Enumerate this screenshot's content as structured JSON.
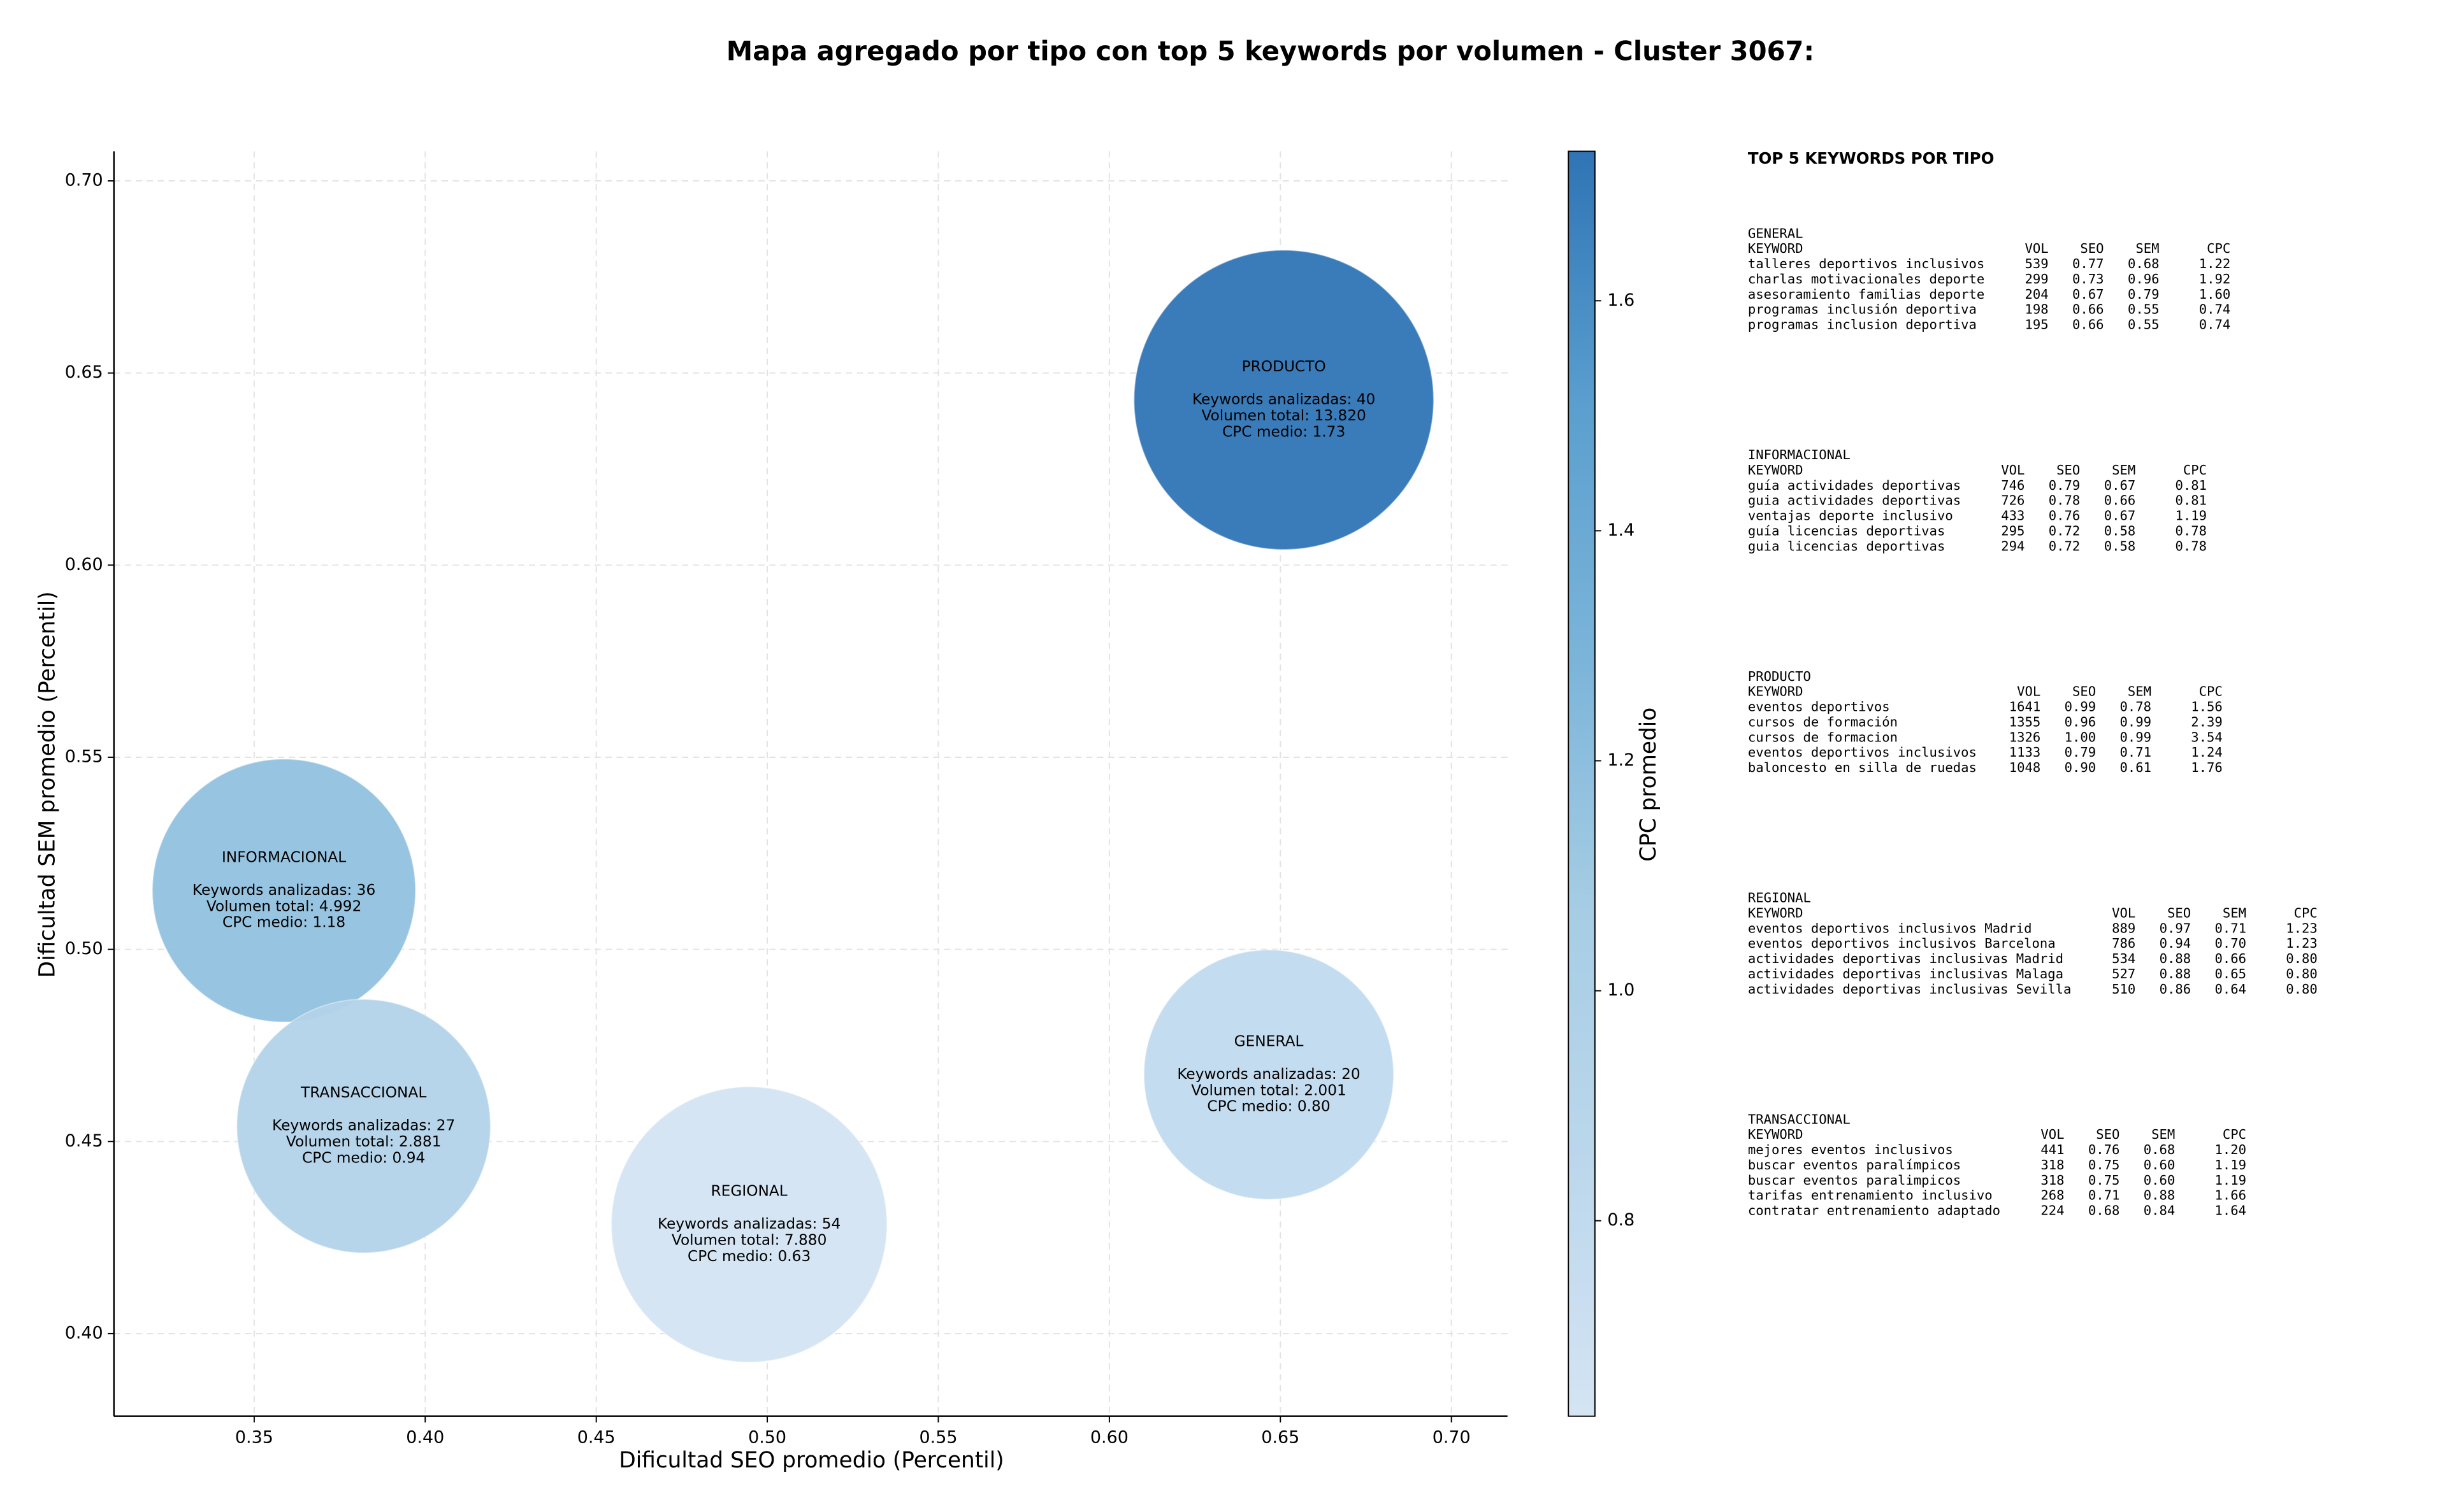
{
  "chart_data": {
    "type": "bubble",
    "title": "Mapa agregado por tipo con top 5 keywords por volumen - Cluster 3067:",
    "xlabel": "Dificultad SEO promedio (Percentil)",
    "ylabel": "Dificultad SEM promedio (Percentil)",
    "xlim": [
      0.309,
      0.7164
    ],
    "ylim": [
      0.3785,
      0.7077
    ],
    "xticks": [
      0.35,
      {
        "value": 0.4,
        "label": "0.40"
      },
      0.45,
      {
        "value": 0.5,
        "label": "0.50"
      },
      0.55,
      {
        "value": 0.6,
        "label": "0.60"
      },
      0.65,
      {
        "value": 0.7,
        "label": "0.70"
      }
    ],
    "yticks": [
      {
        "value": 0.4,
        "label": "0.40"
      },
      0.45,
      {
        "value": 0.5,
        "label": "0.50"
      },
      0.55,
      {
        "value": 0.6,
        "label": "0.60"
      },
      0.65,
      {
        "value": 0.7,
        "label": "0.70"
      }
    ],
    "grid": true,
    "colorbar": {
      "label": "CPC promedio",
      "clim": [
        0.63,
        1.73
      ],
      "ticks": [
        0.8,
        {
          "value": 1,
          "label": "1.0"
        },
        1.2,
        1.4,
        1.6
      ],
      "colors": [
        "#d4e4f3",
        "#bcd7ec",
        "#a6cde4",
        "#7bb4d9",
        "#5a9fce",
        "#2f74b5"
      ]
    },
    "series": [
      {
        "name": "GENERAL",
        "x": 0.6466,
        "y": 0.4674,
        "size": 2001,
        "color_value": 0.8,
        "label_lines": [
          "Keywords analizadas: 20",
          "Volumen total: 2.001",
          "CPC medio: 0.80"
        ]
      },
      {
        "name": "INFORMACIONAL",
        "x": 0.3587,
        "y": 0.5153,
        "size": 4992,
        "color_value": 1.18,
        "label_lines": [
          "Keywords analizadas: 36",
          "Volumen total: 4.992",
          "CPC medio: 1.18"
        ]
      },
      {
        "name": "PRODUCTO",
        "x": 0.651,
        "y": 0.643,
        "size": 13820,
        "color_value": 1.73,
        "label_lines": [
          "Keywords analizadas: 40",
          "Volumen total: 13.820",
          "CPC medio: 1.73"
        ]
      },
      {
        "name": "REGIONAL",
        "x": 0.4947,
        "y": 0.4284,
        "size": 7880,
        "color_value": 0.63,
        "label_lines": [
          "Keywords analizadas: 54",
          "Volumen total: 7.880",
          "CPC medio: 0.63"
        ]
      },
      {
        "name": "TRANSACCIONAL",
        "x": 0.382,
        "y": 0.454,
        "size": 2881,
        "color_value": 0.94,
        "label_lines": [
          "Keywords analizadas: 27",
          "Volumen total: 2.881",
          "CPC medio: 0.94"
        ]
      }
    ]
  },
  "panel": {
    "title": "TOP 5 KEYWORDS POR TIPO",
    "columns": [
      "KEYWORD",
      "VOL",
      "SEO",
      "SEM",
      "CPC"
    ],
    "groups": [
      {
        "name": "GENERAL",
        "rows": [
          [
            "talleres deportivos inclusivos",
            "539",
            "0.77",
            "0.68",
            "1.22"
          ],
          [
            "charlas motivacionales deporte",
            "299",
            "0.73",
            "0.96",
            "1.92"
          ],
          [
            "asesoramiento familias deporte",
            "204",
            "0.67",
            "0.79",
            "1.60"
          ],
          [
            "programas inclusión deportiva",
            "198",
            "0.66",
            "0.55",
            "0.74"
          ],
          [
            "programas inclusion deportiva",
            "195",
            "0.66",
            "0.55",
            "0.74"
          ]
        ]
      },
      {
        "name": "INFORMACIONAL",
        "rows": [
          [
            "guía actividades deportivas",
            "746",
            "0.79",
            "0.67",
            "0.81"
          ],
          [
            "guia actividades deportivas",
            "726",
            "0.78",
            "0.66",
            "0.81"
          ],
          [
            "ventajas deporte inclusivo",
            "433",
            "0.76",
            "0.67",
            "1.19"
          ],
          [
            "guía licencias deportivas",
            "295",
            "0.72",
            "0.58",
            "0.78"
          ],
          [
            "guia licencias deportivas",
            "294",
            "0.72",
            "0.58",
            "0.78"
          ]
        ]
      },
      {
        "name": "PRODUCTO",
        "rows": [
          [
            "eventos deportivos",
            "1641",
            "0.99",
            "0.78",
            "1.56"
          ],
          [
            "cursos de formación",
            "1355",
            "0.96",
            "0.99",
            "2.39"
          ],
          [
            "cursos de formacion",
            "1326",
            "1.00",
            "0.99",
            "3.54"
          ],
          [
            "eventos deportivos inclusivos",
            "1133",
            "0.79",
            "0.71",
            "1.24"
          ],
          [
            "baloncesto en silla de ruedas",
            "1048",
            "0.90",
            "0.61",
            "1.76"
          ]
        ]
      },
      {
        "name": "REGIONAL",
        "rows": [
          [
            "eventos deportivos inclusivos Madrid",
            "889",
            "0.97",
            "0.71",
            "1.23"
          ],
          [
            "eventos deportivos inclusivos Barcelona",
            "786",
            "0.94",
            "0.70",
            "1.23"
          ],
          [
            "actividades deportivas inclusivas Madrid",
            "534",
            "0.88",
            "0.66",
            "0.80"
          ],
          [
            "actividades deportivas inclusivas Malaga",
            "527",
            "0.88",
            "0.65",
            "0.80"
          ],
          [
            "actividades deportivas inclusivas Sevilla",
            "510",
            "0.86",
            "0.64",
            "0.80"
          ]
        ]
      },
      {
        "name": "TRANSACCIONAL",
        "rows": [
          [
            "mejores eventos inclusivos",
            "441",
            "0.76",
            "0.68",
            "1.20"
          ],
          [
            "buscar eventos paralímpicos",
            "318",
            "0.75",
            "0.60",
            "1.19"
          ],
          [
            "buscar eventos paralimpicos",
            "318",
            "0.75",
            "0.60",
            "1.19"
          ],
          [
            "tarifas entrenamiento inclusivo",
            "268",
            "0.71",
            "0.88",
            "1.66"
          ],
          [
            "contratar entrenamiento adaptado",
            "224",
            "0.68",
            "0.84",
            "1.64"
          ]
        ]
      }
    ]
  }
}
